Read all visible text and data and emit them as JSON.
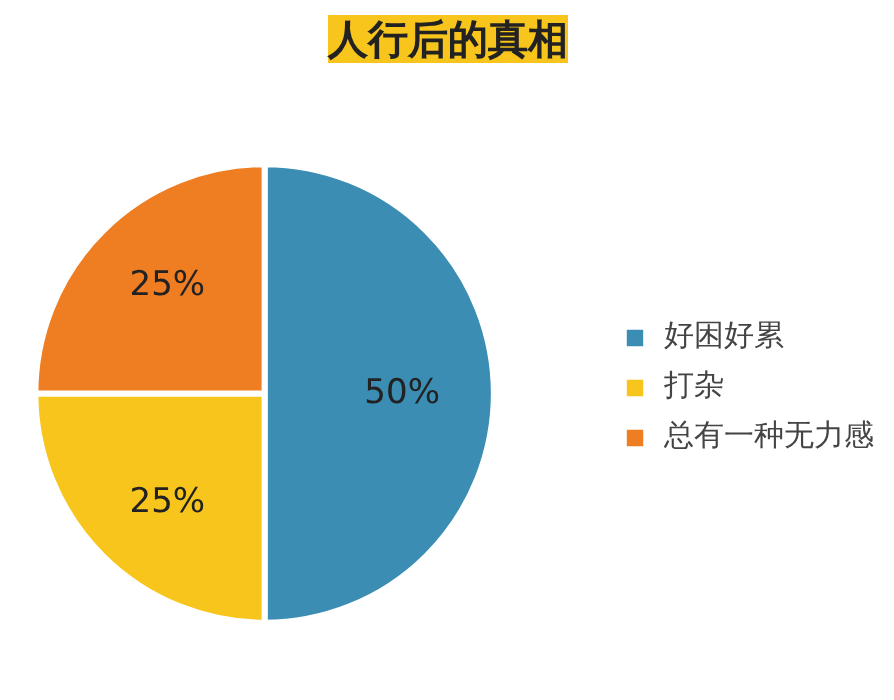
{
  "chart_data": {
    "type": "pie",
    "title": "人行后的真相",
    "categories": [
      "好困好累",
      "打杂",
      "总有一种无力感"
    ],
    "values": [
      50,
      25,
      25
    ],
    "colors": [
      "#3b8db3",
      "#f7c51b",
      "#ef7d22"
    ],
    "value_labels": [
      "50%",
      "25%",
      "25%"
    ],
    "legend": "right"
  }
}
